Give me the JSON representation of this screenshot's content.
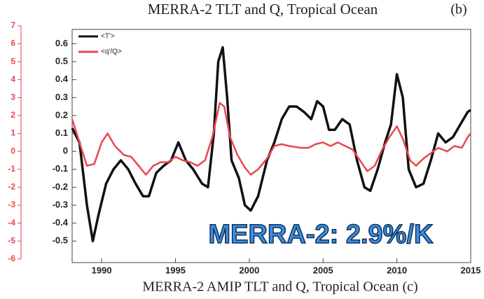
{
  "chart_data": {
    "type": "line",
    "title": "MERRA-2 TLT and Q, Tropical Ocean",
    "panel_label": "(b)",
    "next_panel_title": "MERRA-2 AMIP TLT and Q, Tropical Ocean  (c)",
    "annotation": "MERRA-2: 2.9%/K",
    "xlim": [
      1988,
      2015
    ],
    "xticks": [
      1990,
      1995,
      2000,
      2005,
      2010,
      2015
    ],
    "ylim": [
      -0.62,
      0.68
    ],
    "yticks": [
      -0.5,
      -0.4,
      -0.3,
      -0.2,
      -0.1,
      0,
      0.1,
      0.2,
      0.3,
      0.4,
      0.5,
      0.6
    ],
    "y2lim": [
      -6.2,
      6.8
    ],
    "y2ticks": [
      -6,
      -5,
      -4,
      -3,
      -2,
      -1,
      0,
      1,
      2,
      3,
      4,
      5,
      6,
      7
    ],
    "y2color": "#e8474f",
    "legend": "upper left",
    "series": [
      {
        "name": "<T'>",
        "color": "#111111",
        "x": [
          1988,
          1988.5,
          1989.0,
          1989.4,
          1989.8,
          1990.3,
          1990.8,
          1991.3,
          1991.8,
          1992.3,
          1992.8,
          1993.2,
          1993.7,
          1994.2,
          1994.7,
          1995.2,
          1995.7,
          1996.2,
          1996.8,
          1997.2,
          1997.6,
          1997.9,
          1998.2,
          1998.5,
          1998.8,
          1999.3,
          1999.7,
          2000.1,
          2000.6,
          2001.2,
          2001.7,
          2002.2,
          2002.7,
          2003.2,
          2003.7,
          2004.2,
          2004.6,
          2005.0,
          2005.4,
          2005.8,
          2006.3,
          2006.8,
          2007.3,
          2007.8,
          2008.2,
          2008.7,
          2009.2,
          2009.6,
          2010.0,
          2010.4,
          2010.8,
          2011.3,
          2011.8,
          2012.3,
          2012.8,
          2013.3,
          2013.8,
          2014.3,
          2014.8,
          2015
        ],
        "values": [
          0.13,
          0.05,
          -0.3,
          -0.5,
          -0.35,
          -0.18,
          -0.1,
          -0.05,
          -0.1,
          -0.18,
          -0.25,
          -0.25,
          -0.12,
          -0.08,
          -0.05,
          0.05,
          -0.05,
          -0.1,
          -0.18,
          -0.2,
          0.1,
          0.5,
          0.58,
          0.3,
          -0.05,
          -0.15,
          -0.3,
          -0.33,
          -0.25,
          -0.05,
          0.05,
          0.18,
          0.25,
          0.25,
          0.22,
          0.18,
          0.28,
          0.25,
          0.12,
          0.12,
          0.18,
          0.15,
          -0.05,
          -0.2,
          -0.22,
          -0.1,
          0.05,
          0.15,
          0.43,
          0.3,
          -0.1,
          -0.2,
          -0.18,
          -0.05,
          0.1,
          0.05,
          0.08,
          0.15,
          0.22,
          0.23
        ]
      },
      {
        "name": "<q'/Q>",
        "color": "#e8474f",
        "axis": "y2",
        "x": [
          1988,
          1988.5,
          1989,
          1989.5,
          1990,
          1990.4,
          1990.9,
          1991.5,
          1992,
          1992.5,
          1993,
          1993.5,
          1994,
          1994.5,
          1995,
          1995.5,
          1996,
          1996.5,
          1997,
          1997.5,
          1998,
          1998.3,
          1998.7,
          1999.2,
          1999.7,
          2000.1,
          2000.6,
          2001.2,
          2001.7,
          2002.2,
          2002.7,
          2003.5,
          2004,
          2004.5,
          2005,
          2005.5,
          2006,
          2006.5,
          2007,
          2007.5,
          2008,
          2008.5,
          2009,
          2009.5,
          2010,
          2010.4,
          2010.9,
          2011.3,
          2011.8,
          2012.3,
          2012.8,
          2013.4,
          2013.9,
          2014.4,
          2014.8,
          2015
        ],
        "values": [
          1.8,
          0.5,
          -0.8,
          -0.7,
          0.5,
          1.0,
          0.3,
          -0.2,
          -0.3,
          -0.8,
          -1.3,
          -0.8,
          -0.6,
          -0.6,
          -0.3,
          -0.5,
          -0.6,
          -0.8,
          -0.5,
          0.8,
          2.7,
          2.5,
          0.8,
          -0.2,
          -0.9,
          -1.3,
          -1.0,
          -0.4,
          0.3,
          0.4,
          0.3,
          0.2,
          0.2,
          0.4,
          0.5,
          0.3,
          0.5,
          0.3,
          0.1,
          -0.5,
          -1.1,
          -0.8,
          0.1,
          0.8,
          1.4,
          0.7,
          -0.5,
          -0.8,
          -0.4,
          -0.1,
          0.2,
          0.0,
          0.3,
          0.2,
          0.8,
          1.0
        ]
      }
    ]
  }
}
